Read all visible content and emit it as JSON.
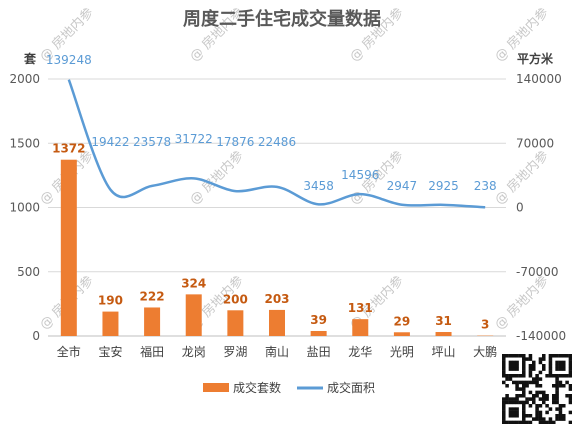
{
  "chart_data": {
    "type": "bar",
    "title": "周度二手住宅成交量数据",
    "categories": [
      "全市",
      "宝安",
      "福田",
      "龙岗",
      "罗湖",
      "南山",
      "盐田",
      "龙华",
      "光明",
      "坪山",
      "大鹏"
    ],
    "series": [
      {
        "name": "成交套数",
        "type": "bar",
        "axis": "left",
        "color": "#ed7d31",
        "values": [
          1372,
          190,
          222,
          324,
          200,
          203,
          39,
          131,
          29,
          31,
          3
        ]
      },
      {
        "name": "成交面积",
        "type": "line",
        "axis": "right",
        "color": "#5b9bd5",
        "values": [
          139248,
          19422,
          23578,
          31722,
          17876,
          22486,
          3458,
          14596,
          2947,
          2925,
          238
        ]
      }
    ],
    "y_left": {
      "unit": "套",
      "min": 0,
      "max": 2000,
      "ticks": [
        0,
        500,
        1000,
        1500,
        2000
      ]
    },
    "y_right": {
      "unit": "平方米",
      "min": -140000,
      "max": 140000,
      "ticks": [
        -140000,
        -70000,
        0,
        70000,
        140000
      ],
      "tick_labels": [
        "-140000",
        "-70000",
        "0",
        "70000",
        "140000"
      ]
    },
    "grid": true,
    "legend": "bottom"
  },
  "watermark": {
    "text": "@ 房地内参"
  },
  "qr_code": {
    "icon": "qr-code-icon"
  }
}
